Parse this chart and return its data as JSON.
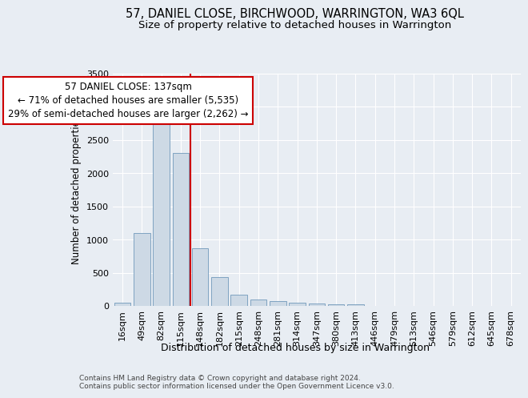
{
  "title": "57, DANIEL CLOSE, BIRCHWOOD, WARRINGTON, WA3 6QL",
  "subtitle": "Size of property relative to detached houses in Warrington",
  "xlabel": "Distribution of detached houses by size in Warrington",
  "ylabel": "Number of detached properties",
  "bar_color": "#cdd9e5",
  "bar_edge_color": "#7099bb",
  "categories": [
    "16sqm",
    "49sqm",
    "82sqm",
    "115sqm",
    "148sqm",
    "182sqm",
    "215sqm",
    "248sqm",
    "281sqm",
    "314sqm",
    "347sqm",
    "380sqm",
    "413sqm",
    "446sqm",
    "479sqm",
    "513sqm",
    "546sqm",
    "579sqm",
    "612sqm",
    "645sqm",
    "678sqm"
  ],
  "values": [
    50,
    1100,
    2750,
    2300,
    875,
    440,
    175,
    100,
    75,
    50,
    40,
    30,
    20,
    5,
    3,
    2,
    1,
    1,
    0,
    0,
    0
  ],
  "ylim": [
    0,
    3500
  ],
  "yticks": [
    0,
    500,
    1000,
    1500,
    2000,
    2500,
    3000,
    3500
  ],
  "vline_pos": 3.5,
  "annotation_text": "57 DANIEL CLOSE: 137sqm\n← 71% of detached houses are smaller (5,535)\n29% of semi-detached houses are larger (2,262) →",
  "annotation_box_color": "#ffffff",
  "annotation_box_edge_color": "#cc0000",
  "vline_color": "#cc0000",
  "bg_color": "#e8edf3",
  "plot_bg_color": "#e8edf3",
  "footer_text": "Contains HM Land Registry data © Crown copyright and database right 2024.\nContains public sector information licensed under the Open Government Licence v3.0.",
  "title_fontsize": 10.5,
  "subtitle_fontsize": 9.5,
  "xlabel_fontsize": 9,
  "ylabel_fontsize": 8.5,
  "tick_fontsize": 8,
  "annotation_fontsize": 8.5,
  "footer_fontsize": 6.5
}
